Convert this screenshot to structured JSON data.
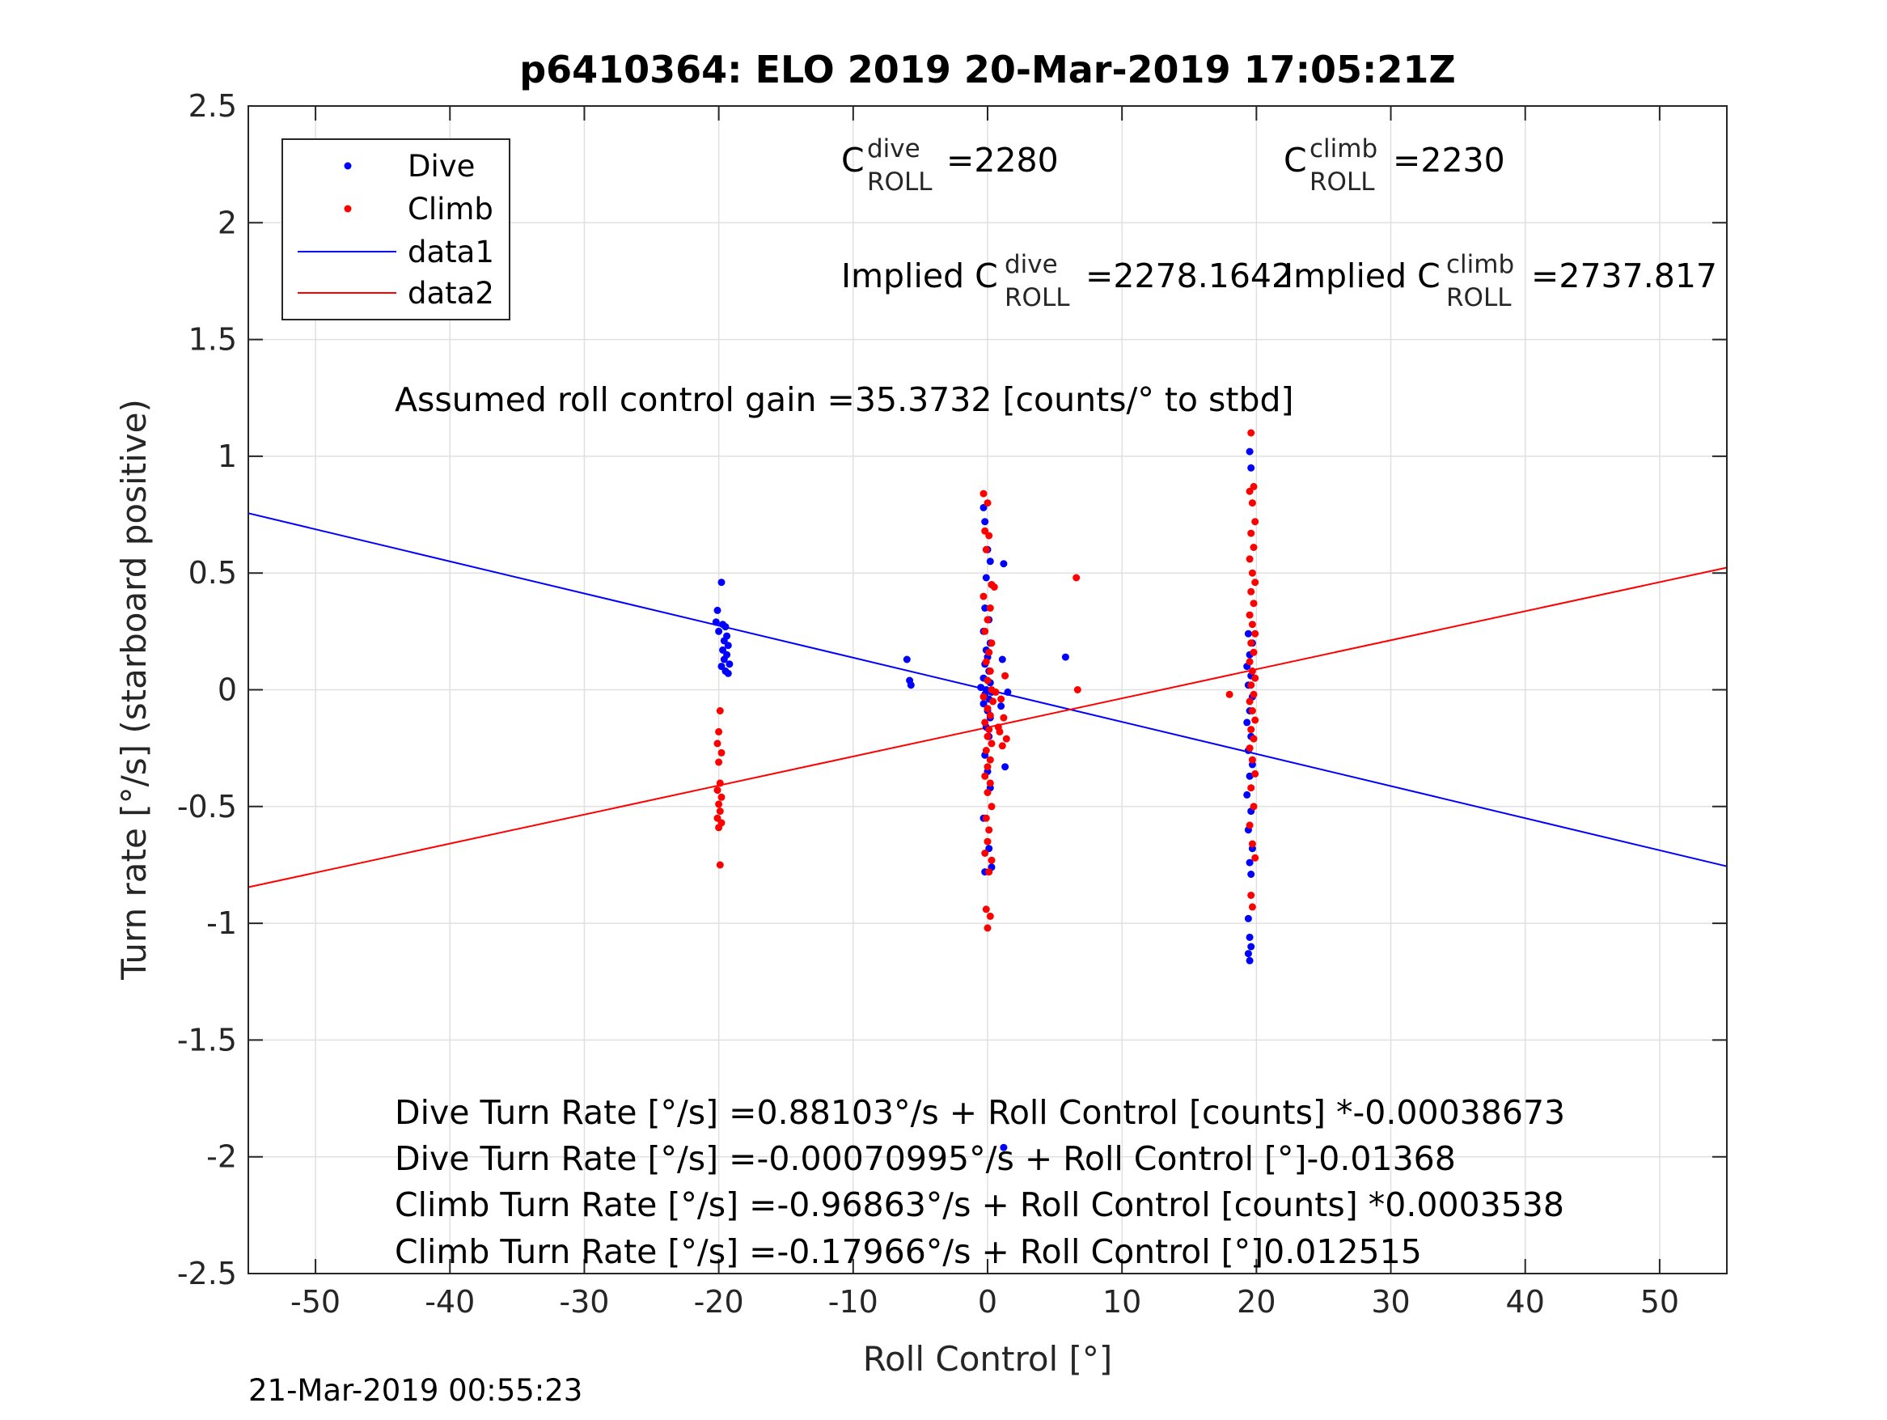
{
  "colors": {
    "dive": "#0000ff",
    "climb": "#ff0000",
    "grid": "#e0e0e0",
    "axis": "#262626",
    "background": "#ffffff"
  },
  "chart_data": {
    "type": "scatter",
    "title": "p6410364: ELO 2019 20-Mar-2019 17:05:21Z",
    "xlabel": "Roll Control [°]",
    "ylabel": "Turn rate [°/s] (starboard positive)",
    "xlim": [
      -55,
      55
    ],
    "ylim": [
      -2.5,
      2.5
    ],
    "grid": true,
    "legend_position": "top-left",
    "x_ticks": [
      "-50",
      "-40",
      "-30",
      "-20",
      "-10",
      "0",
      "10",
      "20",
      "30",
      "40",
      "50"
    ],
    "y_ticks": [
      "2.5",
      "2",
      "1.5",
      "1",
      "0.5",
      "0",
      "-0.5",
      "-1",
      "-1.5",
      "-2",
      "-2.5"
    ],
    "legend": [
      "Dive",
      "Climb",
      "data1",
      "data2"
    ],
    "series": [
      {
        "name": "Dive",
        "kind": "points",
        "color": "#0000ff",
        "points": [
          [
            -19.8,
            0.46
          ],
          [
            -20.1,
            0.34
          ],
          [
            -20.2,
            0.29
          ],
          [
            -19.7,
            0.28
          ],
          [
            -19.5,
            0.27
          ],
          [
            -20.0,
            0.25
          ],
          [
            -19.4,
            0.23
          ],
          [
            -19.6,
            0.21
          ],
          [
            -19.3,
            0.19
          ],
          [
            -19.7,
            0.17
          ],
          [
            -19.4,
            0.15
          ],
          [
            -19.6,
            0.13
          ],
          [
            -19.2,
            0.11
          ],
          [
            -19.8,
            0.1
          ],
          [
            -19.5,
            0.08
          ],
          [
            -19.3,
            0.07
          ],
          [
            -6.0,
            0.13
          ],
          [
            -5.8,
            0.04
          ],
          [
            -5.7,
            0.02
          ],
          [
            -0.3,
            0.78
          ],
          [
            -0.2,
            0.72
          ],
          [
            0.0,
            0.6
          ],
          [
            0.2,
            0.55
          ],
          [
            -0.1,
            0.48
          ],
          [
            0.3,
            0.45
          ],
          [
            -0.2,
            0.35
          ],
          [
            0.1,
            0.3
          ],
          [
            -0.3,
            0.25
          ],
          [
            0.2,
            0.2
          ],
          [
            -0.1,
            0.17
          ],
          [
            0.0,
            0.14
          ],
          [
            -0.2,
            0.11
          ],
          [
            0.1,
            0.08
          ],
          [
            -0.3,
            0.05
          ],
          [
            0.2,
            0.03
          ],
          [
            -0.5,
            0.01
          ],
          [
            -0.1,
            0.0
          ],
          [
            0.3,
            -0.01
          ],
          [
            -0.2,
            -0.02
          ],
          [
            0.1,
            -0.04
          ],
          [
            -0.3,
            -0.06
          ],
          [
            0.0,
            -0.09
          ],
          [
            0.2,
            -0.12
          ],
          [
            -0.1,
            -0.16
          ],
          [
            0.1,
            -0.2
          ],
          [
            -0.2,
            -0.28
          ],
          [
            0.0,
            -0.35
          ],
          [
            0.2,
            -0.42
          ],
          [
            -0.3,
            -0.55
          ],
          [
            0.1,
            -0.68
          ],
          [
            -0.2,
            -0.78
          ],
          [
            0.3,
            -0.76
          ],
          [
            1.2,
            0.54
          ],
          [
            1.1,
            0.13
          ],
          [
            1.5,
            -0.01
          ],
          [
            1.0,
            -0.07
          ],
          [
            1.3,
            -0.33
          ],
          [
            5.8,
            0.14
          ],
          [
            1.2,
            -1.96
          ],
          [
            19.5,
            1.02
          ],
          [
            19.6,
            0.95
          ],
          [
            19.4,
            0.24
          ],
          [
            19.7,
            0.2
          ],
          [
            19.5,
            0.15
          ],
          [
            19.3,
            0.1
          ],
          [
            19.6,
            0.06
          ],
          [
            19.4,
            0.02
          ],
          [
            19.7,
            -0.03
          ],
          [
            19.5,
            -0.09
          ],
          [
            19.3,
            -0.14
          ],
          [
            19.6,
            -0.2
          ],
          [
            19.4,
            -0.26
          ],
          [
            19.7,
            -0.32
          ],
          [
            19.5,
            -0.37
          ],
          [
            19.3,
            -0.45
          ],
          [
            19.6,
            -0.52
          ],
          [
            19.4,
            -0.6
          ],
          [
            19.7,
            -0.68
          ],
          [
            19.5,
            -0.74
          ],
          [
            19.6,
            -0.79
          ],
          [
            19.4,
            -0.98
          ],
          [
            19.5,
            -1.06
          ],
          [
            19.6,
            -1.1
          ],
          [
            19.4,
            -1.13
          ],
          [
            19.5,
            -1.16
          ]
        ]
      },
      {
        "name": "Climb",
        "kind": "points",
        "color": "#ff0000",
        "points": [
          [
            -19.9,
            -0.09
          ],
          [
            -20.0,
            -0.18
          ],
          [
            -20.1,
            -0.23
          ],
          [
            -19.8,
            -0.27
          ],
          [
            -20.0,
            -0.31
          ],
          [
            -19.9,
            -0.4
          ],
          [
            -20.1,
            -0.43
          ],
          [
            -19.8,
            -0.46
          ],
          [
            -20.0,
            -0.49
          ],
          [
            -19.9,
            -0.52
          ],
          [
            -20.1,
            -0.55
          ],
          [
            -19.8,
            -0.57
          ],
          [
            -20.0,
            -0.59
          ],
          [
            -19.9,
            -0.75
          ],
          [
            -0.3,
            0.84
          ],
          [
            0.0,
            0.8
          ],
          [
            -0.2,
            0.68
          ],
          [
            0.1,
            0.66
          ],
          [
            -0.1,
            0.6
          ],
          [
            0.3,
            0.45
          ],
          [
            -0.3,
            0.4
          ],
          [
            0.2,
            0.35
          ],
          [
            0.0,
            0.3
          ],
          [
            -0.2,
            0.25
          ],
          [
            0.3,
            0.2
          ],
          [
            0.1,
            0.16
          ],
          [
            -0.1,
            0.12
          ],
          [
            0.2,
            0.08
          ],
          [
            0.0,
            0.04
          ],
          [
            0.3,
            0.0
          ],
          [
            -0.3,
            -0.03
          ],
          [
            0.4,
            -0.05
          ],
          [
            0.0,
            -0.08
          ],
          [
            0.2,
            -0.11
          ],
          [
            -0.2,
            -0.14
          ],
          [
            0.1,
            -0.17
          ],
          [
            0.0,
            -0.2
          ],
          [
            0.3,
            -0.23
          ],
          [
            -0.1,
            -0.26
          ],
          [
            0.2,
            -0.3
          ],
          [
            0.0,
            -0.33
          ],
          [
            -0.2,
            -0.37
          ],
          [
            0.2,
            -0.4
          ],
          [
            0.0,
            -0.44
          ],
          [
            0.3,
            -0.5
          ],
          [
            -0.1,
            -0.55
          ],
          [
            0.1,
            -0.6
          ],
          [
            0.0,
            -0.65
          ],
          [
            -0.2,
            -0.7
          ],
          [
            0.3,
            -0.73
          ],
          [
            0.1,
            -0.78
          ],
          [
            -0.1,
            -0.94
          ],
          [
            0.2,
            -0.97
          ],
          [
            0.0,
            -1.02
          ],
          [
            0.5,
            0.44
          ],
          [
            0.6,
            -0.01
          ],
          [
            1.0,
            -0.04
          ],
          [
            1.2,
            -0.12
          ],
          [
            0.9,
            -0.18
          ],
          [
            1.4,
            -0.21
          ],
          [
            1.1,
            -0.24
          ],
          [
            0.8,
            -0.16
          ],
          [
            1.3,
            0.06
          ],
          [
            6.6,
            0.48
          ],
          [
            6.7,
            0.0
          ],
          [
            18.0,
            -0.02
          ],
          [
            19.6,
            1.1
          ],
          [
            19.8,
            0.87
          ],
          [
            19.5,
            0.85
          ],
          [
            19.7,
            0.8
          ],
          [
            19.9,
            0.72
          ],
          [
            19.6,
            0.67
          ],
          [
            19.8,
            0.61
          ],
          [
            19.5,
            0.56
          ],
          [
            19.7,
            0.5
          ],
          [
            19.9,
            0.46
          ],
          [
            19.6,
            0.42
          ],
          [
            19.8,
            0.37
          ],
          [
            19.5,
            0.32
          ],
          [
            19.7,
            0.28
          ],
          [
            19.9,
            0.24
          ],
          [
            19.6,
            0.2
          ],
          [
            19.8,
            0.16
          ],
          [
            19.5,
            0.12
          ],
          [
            19.7,
            0.08
          ],
          [
            19.9,
            0.05
          ],
          [
            19.6,
            0.02
          ],
          [
            19.8,
            -0.02
          ],
          [
            19.5,
            -0.05
          ],
          [
            19.7,
            -0.09
          ],
          [
            19.9,
            -0.13
          ],
          [
            19.6,
            -0.17
          ],
          [
            19.8,
            -0.21
          ],
          [
            19.5,
            -0.25
          ],
          [
            19.7,
            -0.3
          ],
          [
            19.9,
            -0.36
          ],
          [
            19.6,
            -0.42
          ],
          [
            19.8,
            -0.5
          ],
          [
            19.5,
            -0.58
          ],
          [
            19.7,
            -0.66
          ],
          [
            19.9,
            -0.72
          ],
          [
            19.6,
            -0.88
          ],
          [
            19.7,
            -0.93
          ]
        ]
      },
      {
        "name": "data1",
        "kind": "line",
        "color": "#0000ff",
        "x": [
          -55,
          55
        ],
        "y": [
          0.7561,
          -0.7561
        ]
      },
      {
        "name": "data2",
        "kind": "line",
        "color": "#ff0000",
        "x": [
          -55,
          55
        ],
        "y": [
          -0.8454,
          0.5231
        ]
      }
    ],
    "annotations": {
      "c_dive_label": "C",
      "c_dive_sup": "dive",
      "c_dive_sub": "ROLL",
      "c_dive_value": "=2280",
      "c_climb_label": "C",
      "c_climb_sup": "climb",
      "c_climb_sub": "ROLL",
      "c_climb_value": "=2230",
      "implied_dive_label": "Implied C",
      "implied_dive_sup": "dive",
      "implied_dive_sub": "ROLL",
      "implied_dive_value": "=2278.1642",
      "implied_climb_label": "Implied C",
      "implied_climb_sup": "climb",
      "implied_climb_sub": "ROLL",
      "implied_climb_value": "=2737.817",
      "gain": "Assumed roll control gain =35.3732 [counts/° to stbd]",
      "eq_dive_counts": "Dive Turn Rate [°/s] =0.88103°/s + Roll Control [counts] *-0.00038673",
      "eq_dive_deg": "Dive Turn Rate [°/s] =-0.00070995°/s + Roll Control [°]-0.01368",
      "eq_climb_counts": "Climb Turn Rate [°/s] =-0.96863°/s + Roll Control [counts] *0.0003538",
      "eq_climb_deg": "Climb Turn Rate [°/s] =-0.17966°/s + Roll Control [°]0.012515"
    }
  },
  "footer": {
    "timestamp": "21-Mar-2019 00:55:23"
  }
}
